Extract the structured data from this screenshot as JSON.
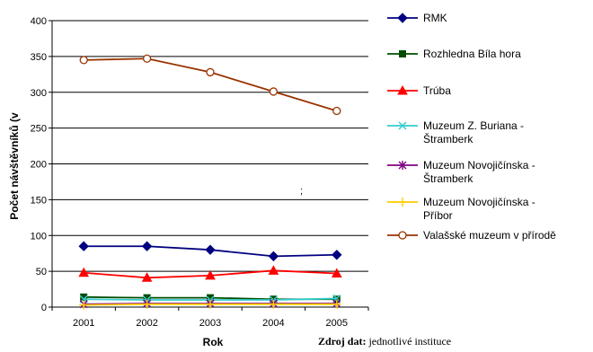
{
  "chart_data": {
    "type": "line",
    "x": [
      "2001",
      "2002",
      "2003",
      "2004",
      "2005"
    ],
    "xlabel": "Rok",
    "ylabel": "Počet návštěvníků (v",
    "ylim": [
      0,
      400
    ],
    "yticks": [
      "0",
      "50",
      "100",
      "150",
      "200",
      "250",
      "300",
      "350",
      "400"
    ],
    "grid": "horizontal",
    "legend_position": "right",
    "series": [
      {
        "name": "RMK",
        "values": [
          85,
          85,
          80,
          71,
          73
        ],
        "color": "#000080",
        "marker": "diamond"
      },
      {
        "name": "Rozhledna Bílá hora",
        "values": [
          14,
          13,
          13,
          11,
          11
        ],
        "color": "#004d00",
        "marker": "square"
      },
      {
        "name": "Trúba",
        "values": [
          48,
          41,
          44,
          51,
          47
        ],
        "color": "#ff0000",
        "marker": "triangle"
      },
      {
        "name": "Muzeum Z. Buriana - Štramberk",
        "values": [
          11,
          10,
          10,
          10,
          12
        ],
        "color": "#33cccc",
        "marker": "x"
      },
      {
        "name": "Muzeum Novojičínska - Štramberk",
        "values": [
          4,
          5,
          5,
          5,
          5
        ],
        "color": "#800080",
        "marker": "star"
      },
      {
        "name": "Muzeum Novojičínska - Příbor",
        "values": [
          3,
          4,
          4,
          4,
          4
        ],
        "color": "#ffcc00",
        "marker": "plus"
      },
      {
        "name": "Valašské muzeum v přírodě",
        "values": [
          345,
          347,
          328,
          301,
          274
        ],
        "color": "#993300",
        "marker": "circle"
      }
    ],
    "legend_labels": [
      [
        "RMK"
      ],
      [
        "Rozhledna Bíla hora"
      ],
      [
        "Trúba"
      ],
      [
        "Muzeum Z. Buriana -",
        "Štramberk"
      ],
      [
        "Muzeum Novojičínska -",
        "Štramberk"
      ],
      [
        "Muzeum Novojičínska -",
        "Příbor"
      ],
      [
        "Valašské muzeum v přírodě"
      ]
    ],
    "source_label": "Zdroj dat:",
    "source_text": "jednotlivé instituce",
    "stray_mark": ";"
  }
}
